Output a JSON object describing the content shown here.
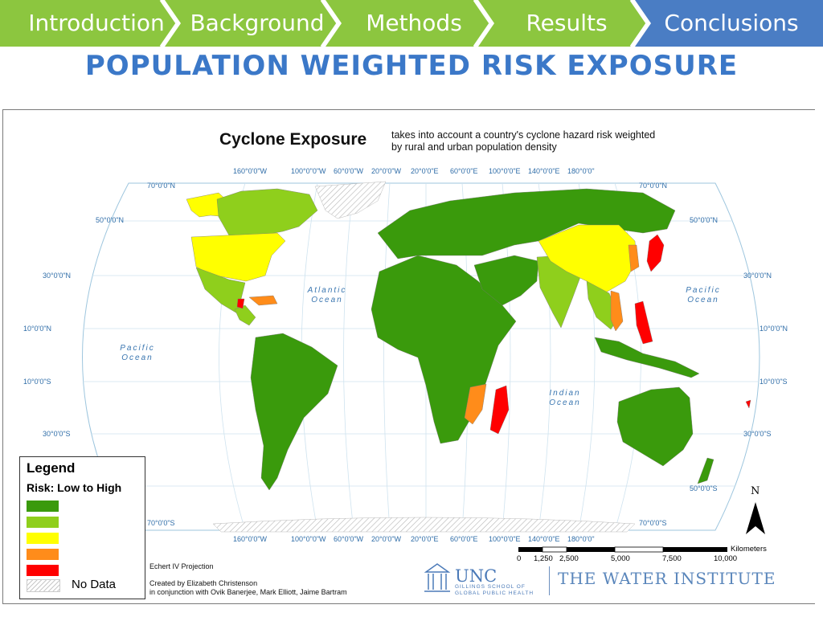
{
  "nav": {
    "tabs": [
      {
        "label": "Introduction",
        "active": false
      },
      {
        "label": "Background",
        "active": false
      },
      {
        "label": "Methods",
        "active": false
      },
      {
        "label": "Results",
        "active": false
      },
      {
        "label": "Conclusions",
        "active": true
      }
    ],
    "colors": {
      "inactive": "#8cc63f",
      "active": "#4a7dc4"
    }
  },
  "slide_title": "POPULATION WEIGHTED RISK EXPOSURE",
  "map": {
    "title": "Cyclone Exposure",
    "subtitle": "takes into account a country's cyclone hazard risk weighted by rural and urban population density",
    "top_longitudes": [
      "160°0'0\"W",
      "100°0\"0\"W",
      "60°0'0\"W",
      "20°0'0\"W",
      "20°0'0\"E",
      "60°0'0\"E",
      "100°0'0\"E",
      "140°0'0\"E",
      "180°0'0\""
    ],
    "bottom_longitudes": [
      "160°0'0\"W",
      "100°0\"0\"W",
      "60°0'0\"W",
      "20°0'0\"W",
      "20°0'0\"E",
      "60°0'0\"E",
      "100°0'0\"E",
      "140°0'0\"E",
      "180°0'0\""
    ],
    "left_latitudes": [
      "70°0'0\"N",
      "50°0'0\"N",
      "30°0'0\"N",
      "10°0'0\"N",
      "10°0'0\"S",
      "30°0'0\"S",
      "70°0'0\"S"
    ],
    "right_latitudes": [
      "70°0'0\"N",
      "50°0'0\"N",
      "30°0'0\"N",
      "10°0'0\"N",
      "10°0'0\"S",
      "30°0'0\"S",
      "50°0'0\"S",
      "70°0'0\"S"
    ],
    "oceans": {
      "atlantic": [
        "Atlantic",
        "Ocean"
      ],
      "pacific_west": [
        "Pacific",
        "Ocean"
      ],
      "pacific_east": [
        "Pacific",
        "Ocean"
      ],
      "indian": [
        "Indian",
        "Ocean"
      ]
    },
    "north_arrow": "N",
    "legend": {
      "title": "Legend",
      "subtitle": "Risk: Low to High",
      "colors": [
        "#3a9a0c",
        "#8fcf1c",
        "#ffff00",
        "#ff8c1a",
        "#ff0000"
      ],
      "no_data": "No Data"
    },
    "projection": "Echert IV Projection",
    "credit_line1": "Created by Elizabeth Christenson",
    "credit_line2": "in conjunction with Ovik Banerjee, Mark Elliott, Jaime Bartram",
    "scale": {
      "units": "Kilometers",
      "ticks": [
        "0",
        "1,250",
        "2,500",
        "5,000",
        "7,500",
        "10,000"
      ]
    }
  },
  "logos": {
    "unc": "UNC",
    "unc_sub1": "GILLINGS SCHOOL OF",
    "unc_sub2": "GLOBAL PUBLIC HEALTH",
    "water_institute": "THE WATER INSTITUTE"
  }
}
